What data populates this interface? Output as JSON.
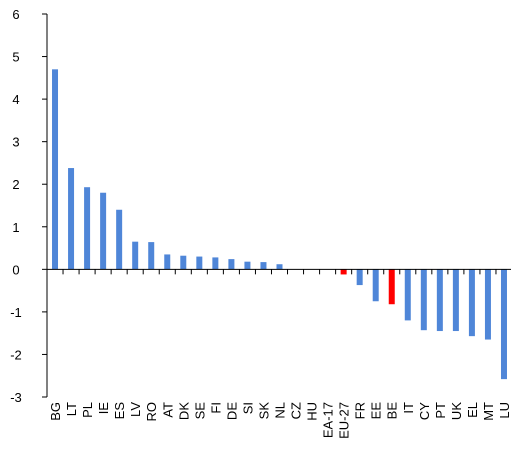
{
  "chart_data": {
    "type": "bar",
    "title": "",
    "xlabel": "",
    "ylabel": "",
    "ylim": [
      -3,
      6
    ],
    "yticks": [
      -3,
      -2,
      -1,
      0,
      1,
      2,
      3,
      4,
      5,
      6
    ],
    "grid": false,
    "legend": "none",
    "categories": [
      "BG",
      "LT",
      "PL",
      "IE",
      "ES",
      "LV",
      "RO",
      "AT",
      "DK",
      "SE",
      "FI",
      "DE",
      "SI",
      "SK",
      "NL",
      "CZ",
      "HU",
      "EA-17",
      "EU-27",
      "FR",
      "EE",
      "BE",
      "IT",
      "CY",
      "PT",
      "UK",
      "EL",
      "MT",
      "LU"
    ],
    "values": [
      4.7,
      2.38,
      1.93,
      1.8,
      1.4,
      0.65,
      0.64,
      0.35,
      0.32,
      0.3,
      0.28,
      0.24,
      0.18,
      0.17,
      0.12,
      0.0,
      0.0,
      0.0,
      -0.12,
      -0.37,
      -0.75,
      -0.82,
      -1.2,
      -1.43,
      -1.45,
      -1.45,
      -1.57,
      -1.65,
      -2.58
    ],
    "colors": {
      "default": "#4f86d8",
      "highlight": "#ff0000",
      "axis": "#000000"
    },
    "highlighted": [
      "EU-27",
      "BE"
    ]
  }
}
